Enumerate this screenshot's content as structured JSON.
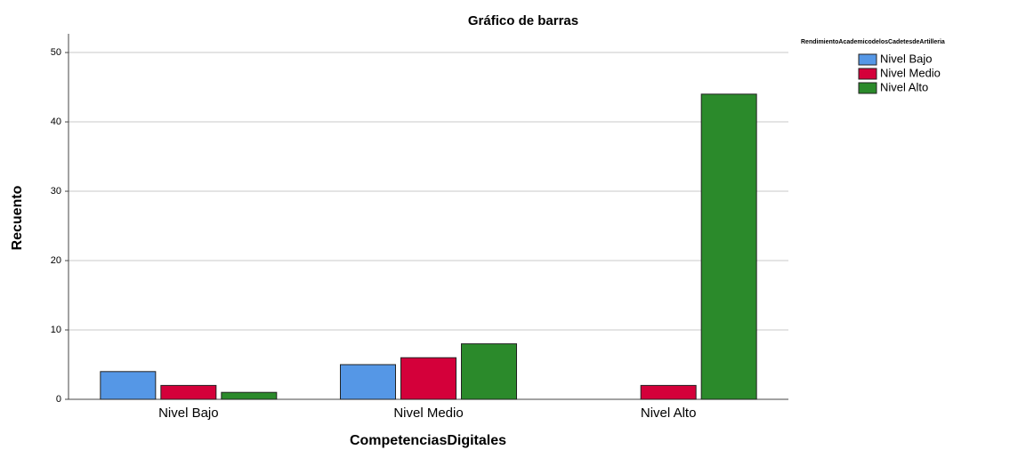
{
  "chart_data": {
    "type": "bar",
    "title": "Gráfico de barras",
    "x_label": "CompetenciasDigitales",
    "y_label": "Recuento",
    "legend_title": "RendimientoAcademicodelosCadetesdeArtilleria",
    "categories": [
      "Nivel Bajo",
      "Nivel Medio",
      "Nivel Alto"
    ],
    "series": [
      {
        "name": "Nivel Bajo",
        "color": "#5597e6",
        "values": [
          4,
          5,
          0
        ]
      },
      {
        "name": "Nivel Medio",
        "color": "#d4003a",
        "values": [
          2,
          6,
          2
        ]
      },
      {
        "name": "Nivel Alto",
        "color": "#2b8a2b",
        "values": [
          1,
          8,
          44
        ]
      }
    ],
    "ylim": [
      0,
      52.7
    ],
    "yticks": [
      0,
      10,
      20,
      30,
      40,
      50
    ],
    "grid": true,
    "legend": "right"
  }
}
